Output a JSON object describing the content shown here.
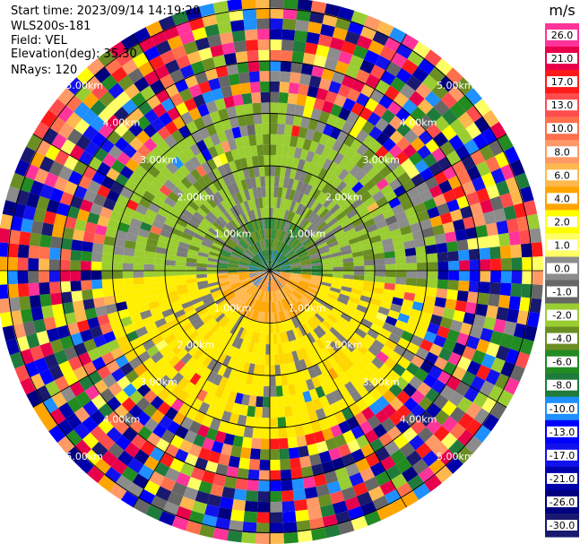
{
  "header": {
    "start_time": "Start time: 2023/09/14 14:19:20",
    "instrument": "WLS200s-181",
    "field": "Field: VEL",
    "elevation": "Elevation(deg): 35.30",
    "nrays": "NRays: 120"
  },
  "chart_data": {
    "type": "heatmap",
    "projection": "polar-ppi",
    "field": "VEL",
    "range_rings_km": [
      1,
      2,
      3,
      4,
      5
    ],
    "ring_labels": [
      "1.00km",
      "2.00km",
      "3.00km",
      "4.00km",
      "5.00km"
    ],
    "rays": 120,
    "colorbar": {
      "unit": "m/s",
      "ticks": [
        "26.0",
        "21.0",
        "17.0",
        "13.0",
        "10.0",
        "8.0",
        "6.0",
        "4.0",
        "2.0",
        "1.0",
        "0.0",
        "-1.0",
        "-2.0",
        "-4.0",
        "-6.0",
        "-8.0",
        "-10.0",
        "-13.0",
        "-17.0",
        "-21.0",
        "-26.0",
        "-30.0"
      ],
      "colors": [
        "#ff3399",
        "#e8004a",
        "#ff1a1a",
        "#ff4d4d",
        "#ff704d",
        "#ff9966",
        "#ffb84d",
        "#ffa500",
        "#ffff00",
        "#ffff66",
        "#8c8c8c",
        "#666666",
        "#9acd32",
        "#6b8e23",
        "#228b22",
        "#1e7b3c",
        "#1e90ff",
        "#0000ff",
        "#1111ee",
        "#0000aa",
        "#000080",
        "#191970"
      ]
    }
  }
}
